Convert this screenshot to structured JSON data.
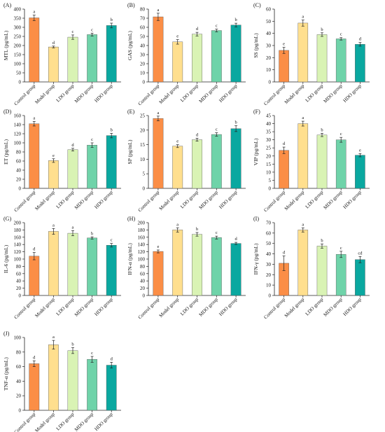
{
  "chart_data": [
    {
      "panel": "(A)",
      "type": "bar",
      "ylabel": "MTL (pg/mL)",
      "ylim": [
        0,
        400
      ],
      "yticks": [
        0,
        50,
        100,
        150,
        200,
        250,
        300,
        350,
        400
      ],
      "categories": [
        "Control group",
        "Model group",
        "LDO group",
        "MDO group",
        "HDO group"
      ],
      "values": [
        352,
        192,
        246,
        260,
        310
      ],
      "errors": [
        15,
        5,
        12,
        8,
        13
      ],
      "letters": [
        "a",
        "d",
        "c",
        "c",
        "b"
      ]
    },
    {
      "panel": "(B)",
      "type": "bar",
      "ylabel": "GAS (pg/mL)",
      "ylim": [
        0,
        80
      ],
      "yticks": [
        0,
        10,
        20,
        30,
        40,
        50,
        60,
        70,
        80
      ],
      "categories": [
        "Control group",
        "Model group",
        "LDO group",
        "MDO group",
        "HDO group"
      ],
      "values": [
        71.5,
        44,
        52.5,
        56.5,
        62.5
      ],
      "errors": [
        4,
        2.5,
        2,
        1.5,
        2
      ],
      "letters": [
        "a",
        "e",
        "d",
        "c",
        "b"
      ]
    },
    {
      "panel": "(C)",
      "type": "bar",
      "ylabel": "SS (pg/mL)",
      "ylim": [
        0,
        60
      ],
      "yticks": [
        0,
        10,
        20,
        30,
        40,
        50,
        60
      ],
      "categories": [
        "Control group",
        "Model group",
        "LDO group",
        "MDO group",
        "HDO group"
      ],
      "values": [
        26,
        48.5,
        39,
        35.5,
        31
      ],
      "errors": [
        2.5,
        2.5,
        1.5,
        1,
        1.5
      ],
      "letters": [
        "e",
        "a",
        "b",
        "c",
        "d"
      ]
    },
    {
      "panel": "(D)",
      "type": "bar",
      "ylabel": "ET (pg/mL)",
      "ylim": [
        0,
        160
      ],
      "yticks": [
        0,
        20,
        40,
        60,
        80,
        100,
        120,
        140,
        160
      ],
      "categories": [
        "Control group",
        "Model group",
        "LDO group",
        "MDO group",
        "HDO group"
      ],
      "values": [
        142,
        61,
        85,
        95,
        116
      ],
      "errors": [
        5,
        4,
        3,
        5,
        5
      ],
      "letters": [
        "a",
        "e",
        "d",
        "c",
        "b"
      ]
    },
    {
      "panel": "(E)",
      "type": "bar",
      "ylabel": "SP (pg/mL)",
      "ylim": [
        0,
        25
      ],
      "yticks": [
        0,
        5,
        10,
        15,
        20,
        25
      ],
      "categories": [
        "Control group",
        "Model group",
        "LDO group",
        "MDO group",
        "HDO group"
      ],
      "values": [
        24,
        14.5,
        16.7,
        18.5,
        20.5
      ],
      "errors": [
        0.8,
        0.5,
        0.5,
        0.6,
        1
      ],
      "letters": [
        "a",
        "e",
        "d",
        "c",
        "b"
      ]
    },
    {
      "panel": "(F)",
      "type": "bar",
      "ylabel": "VIP (pg/mL)",
      "ylim": [
        0,
        45
      ],
      "yticks": [
        0,
        5,
        10,
        15,
        20,
        25,
        30,
        35,
        40,
        45
      ],
      "categories": [
        "Control group",
        "Model group",
        "LDO group",
        "MDO group",
        "HDO group"
      ],
      "values": [
        23.5,
        40,
        33,
        30,
        20.5
      ],
      "errors": [
        2,
        1.5,
        1,
        1.5,
        1
      ],
      "letters": [
        "d",
        "a",
        "b",
        "c",
        "e"
      ]
    },
    {
      "panel": "(G)",
      "type": "bar",
      "ylabel": "IL-6 (pg/mL)",
      "ylim": [
        0,
        200
      ],
      "yticks": [
        0,
        20,
        40,
        60,
        80,
        100,
        120,
        140,
        160,
        180,
        200
      ],
      "categories": [
        "Control group",
        "Model group",
        "LDO group",
        "MDO group",
        "HDO group"
      ],
      "values": [
        108,
        176,
        171,
        158,
        138
      ],
      "errors": [
        10,
        8,
        7,
        3,
        5
      ],
      "letters": [
        "d",
        "a",
        "a",
        "b",
        "c"
      ]
    },
    {
      "panel": "(H)",
      "type": "bar",
      "ylabel": "IFN-α (pg/mL)",
      "ylim": [
        0,
        200
      ],
      "yticks": [
        0,
        20,
        40,
        60,
        80,
        100,
        120,
        140,
        160,
        180,
        200
      ],
      "categories": [
        "Control group",
        "Model group",
        "LDO group",
        "MDO group",
        "HDO group"
      ],
      "values": [
        121,
        180,
        168,
        159,
        143
      ],
      "errors": [
        4,
        6,
        5,
        4,
        3
      ],
      "letters": [
        "e",
        "a",
        "b",
        "c",
        "d"
      ]
    },
    {
      "panel": "(I)",
      "type": "bar",
      "ylabel": "IFN-γ (pg/mL)",
      "ylim": [
        0,
        70
      ],
      "yticks": [
        0,
        10,
        20,
        30,
        40,
        50,
        60,
        70
      ],
      "categories": [
        "Control group",
        "Model group",
        "LDO group",
        "MDO group",
        "HDO group"
      ],
      "values": [
        31,
        63,
        47.5,
        39.5,
        34.5
      ],
      "errors": [
        7,
        2,
        2,
        3,
        3
      ],
      "letters": [
        "d",
        "a",
        "b",
        "c",
        "cd"
      ]
    },
    {
      "panel": "(J)",
      "type": "bar",
      "ylabel": "TNF-α (pg/mL)",
      "ylim": [
        0,
        100
      ],
      "yticks": [
        0,
        20,
        40,
        60,
        80,
        100
      ],
      "categories": [
        "Control group",
        "Model group",
        "LDO group",
        "MDO group",
        "HDO group"
      ],
      "values": [
        64,
        90,
        82,
        70,
        62
      ],
      "errors": [
        4,
        6,
        4,
        4,
        4
      ],
      "letters": [
        "d",
        "a",
        "b",
        "c",
        "d"
      ]
    }
  ],
  "colors": {
    "Control group": "#fb8e46",
    "Model group": "#ffdf8e",
    "LDO group": "#d9f3b4",
    "MDO group": "#6fd3a9",
    "HDO group": "#0aa8a0"
  }
}
